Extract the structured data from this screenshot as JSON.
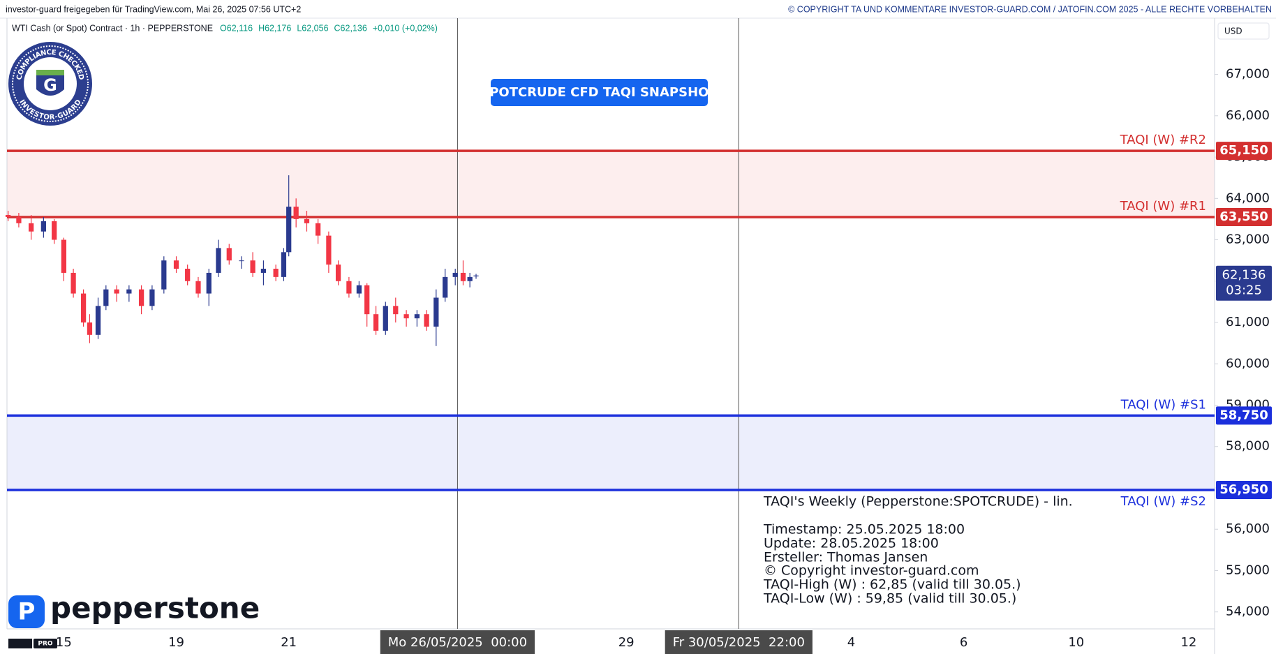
{
  "header": {
    "left": "investor-guard freigegeben für TradingView.com, Mai 26, 2025 07:56 UTC+2",
    "right": "© COPYRIGHT TA UND KOMMENTARE INVESTOR-GUARD.COM / JATOFIN.COM 2025 - ALLE RECHTE VORBEHALTEN"
  },
  "symbol": {
    "name": "WTI Cash (or Spot) Contract · 1h · PEPPERSTONE",
    "ohlc": [
      "O62,116",
      "H62,176",
      "L62,056",
      "C62,136",
      "+0,010 (+0,02%)"
    ]
  },
  "badge": {
    "top": "COMPLIANCE CHECKED",
    "bottom": "INVESTOR-GUARD",
    "letter": "G"
  },
  "logo": {
    "text": "pepperstone",
    "tv": "PRO"
  },
  "info": {
    "lines": [
      "TAQI's Weekly (Pepperstone:SPOTCRUDE) - lin.",
      "Timestamp: 25.05.2025 18:00",
      "Update: 28.05.2025 18:00",
      "Ersteller: Thomas Jansen",
      "© Copyright investor-guard.com",
      "TAQI-High (W) : 62,85 (valid till 30.05.)",
      "TAQI-Low (W) : 59,85 (valid till 30.05.)"
    ]
  },
  "chart_data": {
    "type": "candlestick",
    "title": "SPOTCRUDE CFD TAQI SNAPSHOT",
    "currency": "USD",
    "up_color": "#2a3a8f",
    "down_color": "#f23645",
    "x": [
      -0.99,
      -0.8,
      -0.58,
      -0.36,
      -0.17,
      0,
      0.17,
      0.35,
      0.46,
      0.61,
      0.75,
      0.94,
      1.16,
      1.38,
      1.57,
      1.78,
      2.0,
      2.2,
      2.39,
      2.58,
      2.75,
      2.94,
      3.16,
      3.36,
      3.55,
      3.77,
      3.91,
      4.0,
      4.13,
      4.32,
      4.52,
      4.71,
      4.88,
      5.07,
      5.25,
      5.39,
      5.55,
      5.72,
      5.9,
      6.09,
      6.28,
      6.45,
      6.62,
      6.78,
      6.96,
      7.1,
      7.22,
      7.33
    ],
    "open": [
      63.6,
      63.55,
      63.4,
      63.2,
      63.45,
      63.0,
      62.2,
      61.7,
      61.0,
      60.7,
      61.4,
      61.8,
      61.7,
      61.8,
      61.4,
      61.8,
      62.5,
      62.3,
      62.0,
      61.7,
      62.2,
      62.8,
      62.5,
      62.5,
      62.2,
      62.3,
      62.1,
      62.7,
      63.8,
      63.5,
      63.4,
      63.1,
      62.4,
      62.0,
      61.7,
      61.9,
      61.2,
      60.8,
      61.4,
      61.2,
      61.1,
      61.2,
      60.9,
      61.6,
      62.1,
      62.2,
      62.0,
      62.116
    ],
    "high": [
      63.7,
      63.65,
      63.6,
      63.55,
      63.5,
      63.05,
      62.3,
      61.8,
      61.2,
      61.6,
      61.9,
      61.9,
      61.9,
      61.9,
      61.9,
      62.6,
      62.6,
      62.4,
      62.1,
      62.3,
      63.0,
      62.9,
      62.6,
      62.7,
      62.5,
      62.4,
      62.8,
      64.56,
      64.0,
      63.7,
      63.5,
      63.2,
      62.5,
      62.1,
      62.0,
      61.95,
      61.4,
      61.5,
      61.6,
      61.3,
      61.3,
      61.3,
      61.8,
      62.3,
      62.3,
      62.5,
      62.2,
      62.176
    ],
    "low": [
      63.45,
      63.3,
      63.0,
      63.05,
      62.9,
      62.0,
      61.6,
      60.9,
      60.5,
      60.6,
      61.3,
      61.5,
      61.5,
      61.2,
      61.3,
      61.7,
      62.2,
      61.9,
      61.6,
      61.4,
      62.1,
      62.4,
      62.3,
      62.1,
      61.9,
      62.0,
      62.0,
      62.6,
      63.3,
      63.2,
      62.9,
      62.2,
      61.9,
      61.6,
      61.6,
      60.9,
      60.7,
      60.7,
      61.0,
      60.9,
      60.9,
      60.8,
      60.43,
      61.5,
      61.9,
      61.9,
      61.85,
      62.056
    ],
    "close": [
      63.55,
      63.4,
      63.2,
      63.45,
      63.0,
      62.2,
      61.7,
      61.0,
      60.7,
      61.4,
      61.8,
      61.7,
      61.8,
      61.4,
      61.8,
      62.5,
      62.3,
      62.0,
      61.7,
      62.2,
      62.8,
      62.5,
      62.5,
      62.2,
      62.3,
      62.1,
      62.7,
      63.8,
      63.5,
      63.4,
      63.1,
      62.4,
      62.0,
      61.7,
      61.9,
      61.2,
      60.8,
      61.4,
      61.2,
      61.1,
      61.2,
      60.9,
      61.6,
      62.1,
      62.2,
      62.0,
      62.1,
      62.136
    ],
    "last": {
      "value": 62.136,
      "label": "62,136",
      "countdown": "03:25",
      "color": "#2a3a8f"
    },
    "levels": [
      {
        "name": "TAQI (W) #R2",
        "value": 65.15,
        "label": "65,150",
        "color": "#d32f2f",
        "zone": "#fdeeee"
      },
      {
        "name": "TAQI (W) #R1",
        "value": 63.55,
        "label": "63,550",
        "color": "#d32f2f"
      },
      {
        "name": "TAQI (W) #S1",
        "value": 58.75,
        "label": "58,750",
        "color": "#1b2fdc",
        "zone": "#eceefc"
      },
      {
        "name": "TAQI (W) #S2",
        "value": 56.95,
        "label": "56,950",
        "color": "#1b2fdc"
      }
    ],
    "xlim": [
      -1.01,
      20.46
    ],
    "xticks": [
      {
        "value": 0,
        "label": "15"
      },
      {
        "value": 2,
        "label": "19"
      },
      {
        "value": 4,
        "label": "21"
      },
      {
        "value": 7,
        "label": "Mo 26/05/2025  00:00",
        "highlight": true
      },
      {
        "value": 10,
        "label": "29"
      },
      {
        "value": 12,
        "label": "Fr 30/05/2025  22:00",
        "highlight": true
      },
      {
        "value": 14,
        "label": "4"
      },
      {
        "value": 16,
        "label": "6"
      },
      {
        "value": 18,
        "label": "10"
      },
      {
        "value": 20,
        "label": "12"
      }
    ],
    "ylim": [
      53.59,
      68.36
    ],
    "yticks": [
      {
        "value": 54,
        "label": "54,000"
      },
      {
        "value": 55,
        "label": "55,000"
      },
      {
        "value": 56,
        "label": "56,000"
      },
      {
        "value": 57,
        "label": "57,000"
      },
      {
        "value": 58,
        "label": "58,000"
      },
      {
        "value": 59,
        "label": "59,000"
      },
      {
        "value": 60,
        "label": "60,000"
      },
      {
        "value": 61,
        "label": "61,000"
      },
      {
        "value": 62,
        "label": "62,000"
      },
      {
        "value": 63,
        "label": "63,000"
      },
      {
        "value": 64,
        "label": "64,000"
      },
      {
        "value": 65,
        "label": "65,000"
      },
      {
        "value": 66,
        "label": "66,000"
      },
      {
        "value": 67,
        "label": "67,000"
      }
    ]
  }
}
